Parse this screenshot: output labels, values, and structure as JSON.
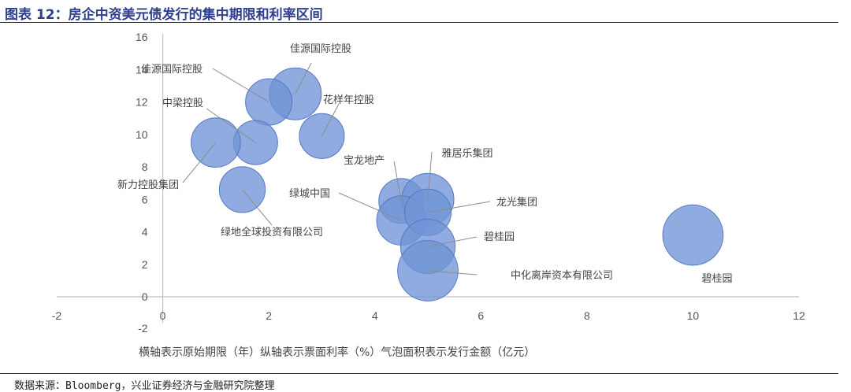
{
  "header": {
    "title": "图表 12：房企中资美元债发行的集中期限和利率区间"
  },
  "footer": {
    "source": "数据来源：Bloomberg，兴业证券经济与金融研究院整理"
  },
  "chart_data": {
    "type": "bubble",
    "xlim": [
      -2,
      12
    ],
    "ylim": [
      -2,
      16
    ],
    "xticks": [
      -2,
      0,
      2,
      4,
      6,
      8,
      10,
      12
    ],
    "yticks": [
      -2,
      0,
      2,
      4,
      6,
      8,
      10,
      12,
      14,
      16
    ],
    "grid": false,
    "note": "横轴表示原始期限（年）纵轴表示票面利率（%）气泡面积表示发行金额（亿元）",
    "points": [
      {
        "label": "佳源国际控股",
        "x": 2.5,
        "y": 12.5,
        "size": 1.0
      },
      {
        "label": "佳源国际控股",
        "x": 2.0,
        "y": 12.0,
        "size": 0.8
      },
      {
        "label": "花样年控股",
        "x": 3.0,
        "y": 9.9,
        "size": 0.75
      },
      {
        "label": "中梁控股",
        "x": 1.75,
        "y": 9.5,
        "size": 0.72
      },
      {
        "label": "新力控股集团",
        "x": 1.0,
        "y": 9.5,
        "size": 0.9
      },
      {
        "label": "绿地全球投资有限公司",
        "x": 1.5,
        "y": 6.6,
        "size": 0.78
      },
      {
        "label": "宝龙地产",
        "x": 4.5,
        "y": 5.9,
        "size": 0.75
      },
      {
        "label": "雅居乐集团",
        "x": 5.0,
        "y": 6.0,
        "size": 1.0
      },
      {
        "label": "绿城中国",
        "x": 4.5,
        "y": 4.7,
        "size": 0.9
      },
      {
        "label": "龙光集团",
        "x": 5.0,
        "y": 5.2,
        "size": 0.8
      },
      {
        "label": "碧桂园",
        "x": 5.0,
        "y": 3.1,
        "size": 1.1
      },
      {
        "label": "中化离岸资本有限公司",
        "x": 5.0,
        "y": 1.6,
        "size": 1.35
      },
      {
        "label": "碧桂园",
        "x": 10.0,
        "y": 3.8,
        "size": 1.35
      }
    ]
  }
}
